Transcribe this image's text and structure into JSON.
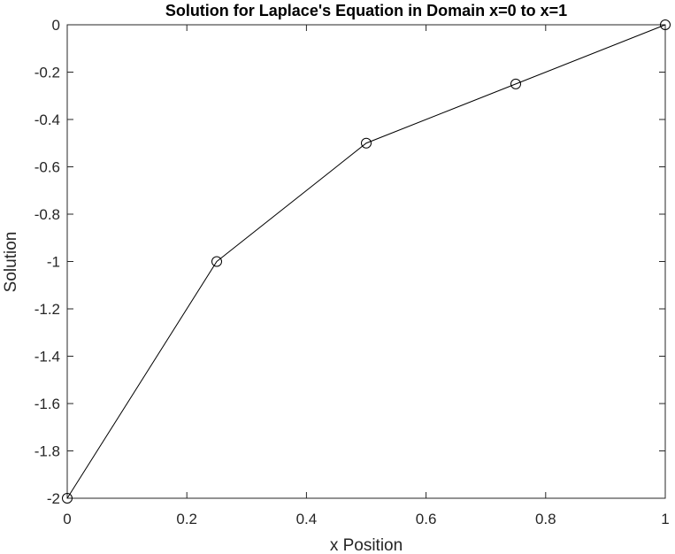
{
  "chart_data": {
    "type": "line",
    "title": "Solution for Laplace's Equation in Domain x=0 to x=1",
    "xlabel": "x Position",
    "ylabel": "Solution",
    "xlim": [
      0,
      1
    ],
    "ylim": [
      -2,
      0
    ],
    "xticks": [
      0,
      0.2,
      0.4,
      0.6,
      0.8,
      1
    ],
    "xtick_labels": [
      "0",
      "0.2",
      "0.4",
      "0.6",
      "0.8",
      "1"
    ],
    "yticks": [
      0,
      -0.2,
      -0.4,
      -0.6,
      -0.8,
      -1,
      -1.2,
      -1.4,
      -1.6,
      -1.8,
      -2
    ],
    "ytick_labels": [
      "0",
      "-0.2",
      "-0.4",
      "-0.6",
      "-0.8",
      "-1",
      "-1.2",
      "-1.4",
      "-1.6",
      "-1.8",
      "-2"
    ],
    "grid": false,
    "marker": "circle",
    "line_color": "#000000",
    "series": [
      {
        "x": [
          0,
          0.25,
          0.5,
          0.75,
          1
        ],
        "y": [
          -2,
          -1,
          -0.5,
          -0.25,
          0
        ]
      }
    ]
  }
}
